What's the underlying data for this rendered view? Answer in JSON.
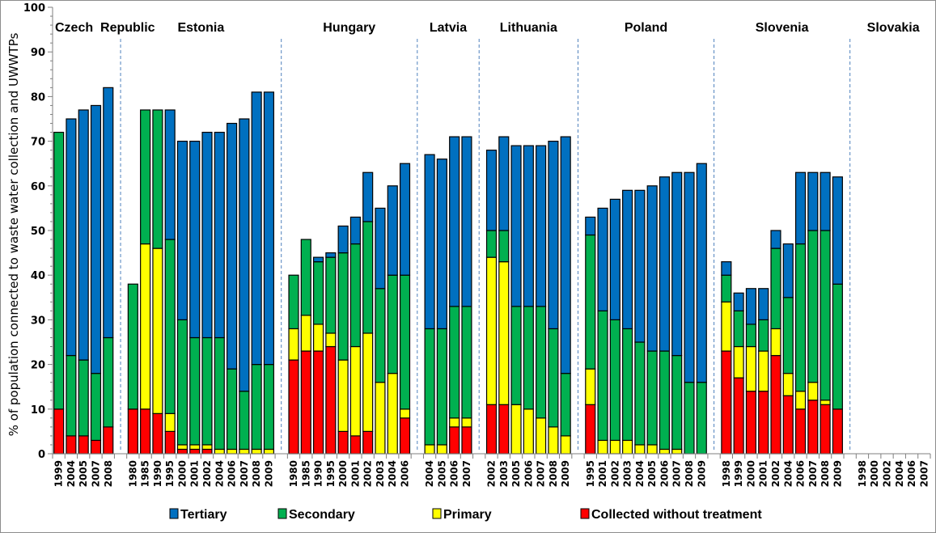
{
  "chart_data": {
    "type": "bar",
    "stacked": true,
    "title": "",
    "xlabel": "",
    "ylabel": "% of population connected to waste water collection and UWWTPs",
    "ylim": [
      0,
      100
    ],
    "yticks": [
      0,
      10,
      20,
      30,
      40,
      50,
      60,
      70,
      80,
      90,
      100
    ],
    "grid": false,
    "legend_position": "bottom",
    "series_order_bottom_to_top": [
      "Collected without treatment",
      "Primary",
      "Secondary",
      "Tertiary"
    ],
    "legend": [
      {
        "name": "Tertiary",
        "color": "#0070C0"
      },
      {
        "name": "Secondary",
        "color": "#00B050"
      },
      {
        "name": "Primary",
        "color": "#FFFF00"
      },
      {
        "name": "Collected without treatment",
        "color": "#FF0000"
      }
    ],
    "groups": [
      {
        "country": "Czech  Republic",
        "categories": [
          "1999",
          "2004",
          "2005",
          "2007",
          "2008"
        ],
        "series": {
          "Collected without treatment": [
            10,
            4,
            4,
            3,
            6
          ],
          "Primary": [
            0,
            0,
            0,
            0,
            0
          ],
          "Secondary": [
            62,
            18,
            17,
            15,
            20
          ],
          "Tertiary": [
            0,
            53,
            56,
            60,
            56
          ]
        }
      },
      {
        "country": "Estonia",
        "categories": [
          "1980",
          "1985",
          "1990",
          "1995",
          "2000",
          "2001",
          "2002",
          "2004",
          "2006",
          "2007",
          "2008",
          "2009"
        ],
        "series": {
          "Collected without treatment": [
            10,
            10,
            9,
            5,
            1,
            1,
            1,
            0,
            0,
            0,
            0,
            0
          ],
          "Primary": [
            0,
            37,
            37,
            4,
            1,
            1,
            1,
            1,
            1,
            1,
            1,
            1
          ],
          "Secondary": [
            28,
            30,
            31,
            39,
            28,
            24,
            24,
            25,
            18,
            13,
            19,
            19
          ],
          "Tertiary": [
            0,
            0,
            0,
            29,
            40,
            44,
            46,
            46,
            55,
            61,
            61,
            61
          ]
        }
      },
      {
        "country": "Hungary",
        "categories": [
          "1980",
          "1985",
          "1990",
          "1995",
          "2000",
          "2001",
          "2002",
          "2003",
          "2004",
          "2006"
        ],
        "series": {
          "Collected without treatment": [
            21,
            23,
            23,
            24,
            5,
            4,
            5,
            0,
            0,
            8
          ],
          "Primary": [
            7,
            8,
            6,
            3,
            16,
            20,
            22,
            16,
            18,
            2
          ],
          "Secondary": [
            12,
            17,
            14,
            17,
            24,
            23,
            25,
            21,
            22,
            30
          ],
          "Tertiary": [
            0,
            0,
            1,
            1,
            6,
            6,
            11,
            18,
            20,
            25
          ]
        }
      },
      {
        "country": "Latvia",
        "categories": [
          "2004",
          "2005",
          "2006",
          "2007"
        ],
        "series": {
          "Collected without treatment": [
            0,
            0,
            6,
            6
          ],
          "Primary": [
            2,
            2,
            2,
            2
          ],
          "Secondary": [
            26,
            26,
            25,
            25
          ],
          "Tertiary": [
            39,
            38,
            38,
            38
          ]
        }
      },
      {
        "country": "Lithuania",
        "categories": [
          "2002",
          "2003",
          "2005",
          "2006",
          "2007",
          "2008",
          "2009"
        ],
        "series": {
          "Collected without treatment": [
            11,
            11,
            0,
            0,
            0,
            0,
            0
          ],
          "Primary": [
            33,
            32,
            11,
            10,
            8,
            6,
            4
          ],
          "Secondary": [
            6,
            7,
            22,
            23,
            25,
            22,
            14
          ],
          "Tertiary": [
            18,
            21,
            36,
            36,
            36,
            42,
            53
          ]
        }
      },
      {
        "country": "Poland",
        "categories": [
          "1995",
          "2001",
          "2002",
          "2003",
          "2004",
          "2005",
          "2006",
          "2007",
          "2008",
          "2009"
        ],
        "series": {
          "Collected without treatment": [
            11,
            0,
            0,
            0,
            0,
            0,
            0,
            0,
            0,
            0
          ],
          "Primary": [
            8,
            3,
            3,
            3,
            2,
            2,
            1,
            1,
            0,
            0
          ],
          "Secondary": [
            30,
            29,
            27,
            25,
            23,
            21,
            22,
            21,
            16,
            16
          ],
          "Tertiary": [
            4,
            23,
            27,
            31,
            34,
            37,
            39,
            41,
            47,
            49
          ]
        }
      },
      {
        "country": "Slovenia",
        "categories": [
          "1998",
          "1999",
          "2000",
          "2001",
          "2002",
          "2004",
          "2006",
          "2007",
          "2008",
          "2009"
        ],
        "series": {
          "Collected without treatment": [
            23,
            17,
            14,
            14,
            22,
            13,
            10,
            12,
            11,
            10
          ],
          "Primary": [
            11,
            7,
            10,
            9,
            6,
            5,
            4,
            4,
            1,
            0
          ],
          "Secondary": [
            6,
            8,
            5,
            7,
            18,
            17,
            33,
            34,
            38,
            28
          ],
          "Tertiary": [
            3,
            4,
            8,
            7,
            4,
            12,
            16,
            13,
            13,
            24
          ]
        }
      },
      {
        "country": "Slovakia",
        "categories": [
          "1998",
          "2000",
          "2002",
          "2004",
          "2006",
          "2007"
        ],
        "series": {
          "Collected without treatment": [
            0,
            0,
            0,
            0,
            0,
            0
          ],
          "Primary": [
            0,
            0,
            0,
            0,
            0,
            0
          ],
          "Secondary": [
            0,
            0,
            0,
            0,
            0,
            0
          ],
          "Tertiary": [
            0,
            0,
            0,
            0,
            0,
            0
          ]
        }
      }
    ]
  }
}
